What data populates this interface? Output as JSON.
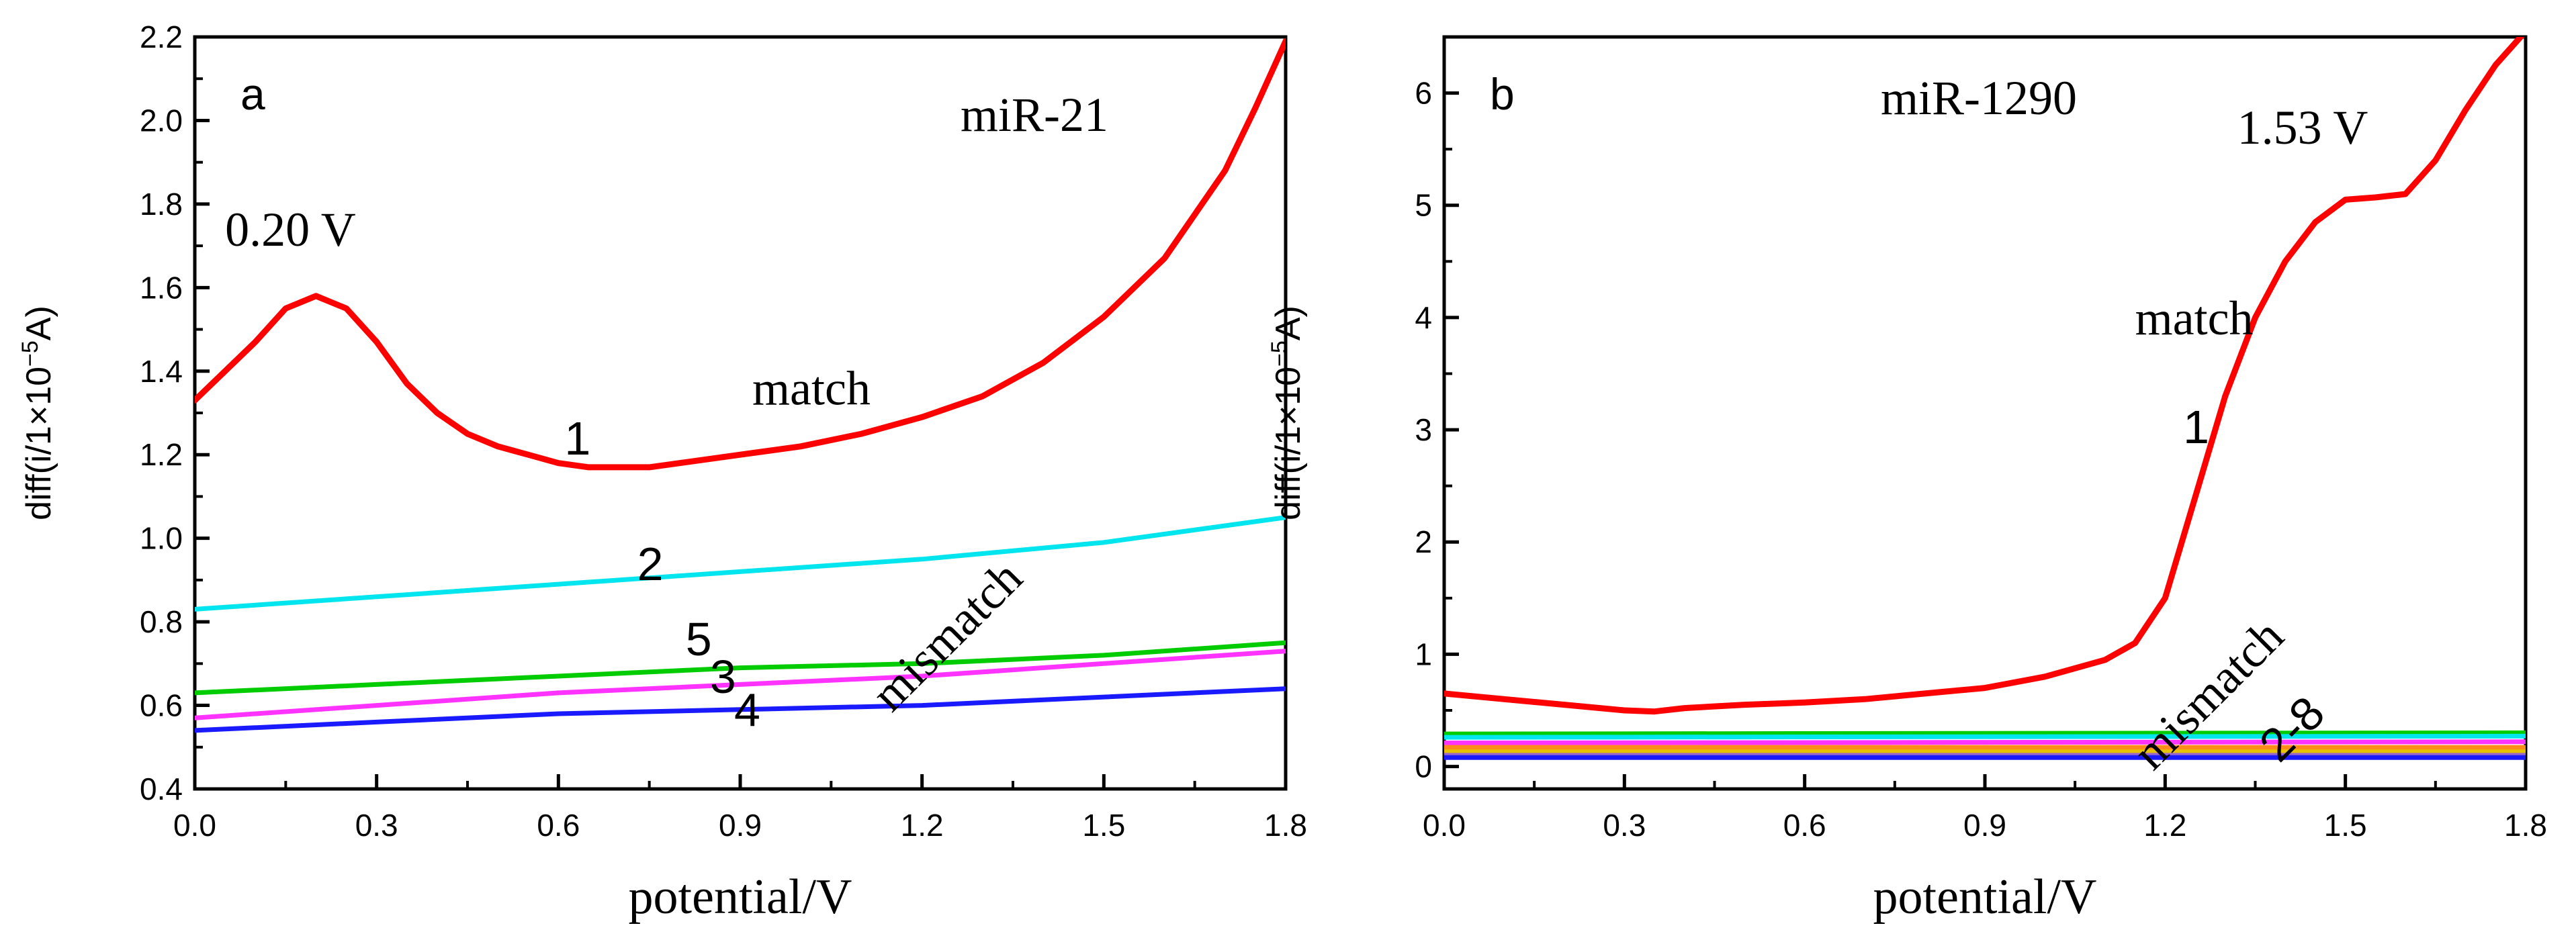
{
  "chart_data": [
    {
      "type": "line",
      "panel_label": "a",
      "title": "miR-21",
      "xlabel": "potential/V",
      "ylabel": "diff(i/1×10",
      "ylabel_exponent": "−5",
      "ylabel_unit": "A)",
      "xlim": [
        0.0,
        1.8
      ],
      "ylim": [
        0.4,
        2.2
      ],
      "xticks": [
        "0.0",
        "0.3",
        "0.6",
        "0.9",
        "1.2",
        "1.5",
        "1.8"
      ],
      "yticks": [
        "0.4",
        "0.6",
        "0.8",
        "1.0",
        "1.2",
        "1.4",
        "1.6",
        "1.8",
        "2.0",
        "2.2"
      ],
      "annotations": [
        {
          "text": "0.20 V",
          "x": 0.05,
          "y": 1.7,
          "style": "serif"
        },
        {
          "text": "match",
          "x": 0.92,
          "y": 1.32,
          "style": "serif"
        },
        {
          "text": "1",
          "x": 0.61,
          "y": 1.2,
          "style": "sans"
        },
        {
          "text": "2",
          "x": 0.73,
          "y": 0.9,
          "style": "sans"
        },
        {
          "text": "5",
          "x": 0.81,
          "y": 0.72,
          "style": "sans"
        },
        {
          "text": "3",
          "x": 0.85,
          "y": 0.63,
          "style": "sans"
        },
        {
          "text": "4",
          "x": 0.89,
          "y": 0.55,
          "style": "sans"
        },
        {
          "text": "mismatch",
          "x": 1.15,
          "y": 0.58,
          "style": "serif",
          "rotate": -45
        }
      ],
      "series": [
        {
          "name": "1",
          "color": "#ff0000",
          "x": [
            0.0,
            0.05,
            0.1,
            0.15,
            0.2,
            0.25,
            0.3,
            0.35,
            0.4,
            0.45,
            0.5,
            0.55,
            0.6,
            0.65,
            0.7,
            0.75,
            0.8,
            0.9,
            1.0,
            1.1,
            1.2,
            1.3,
            1.4,
            1.5,
            1.6,
            1.7,
            1.75,
            1.8
          ],
          "y": [
            1.33,
            1.4,
            1.47,
            1.55,
            1.58,
            1.55,
            1.47,
            1.37,
            1.3,
            1.25,
            1.22,
            1.2,
            1.18,
            1.17,
            1.17,
            1.17,
            1.18,
            1.2,
            1.22,
            1.25,
            1.29,
            1.34,
            1.42,
            1.53,
            1.67,
            1.88,
            2.03,
            2.19
          ]
        },
        {
          "name": "2",
          "color": "#00e5ee",
          "x": [
            0.0,
            0.3,
            0.6,
            0.9,
            1.2,
            1.5,
            1.8
          ],
          "y": [
            0.83,
            0.86,
            0.89,
            0.92,
            0.95,
            0.99,
            1.05
          ]
        },
        {
          "name": "5",
          "color": "#00cc00",
          "x": [
            0.0,
            0.3,
            0.6,
            0.9,
            1.2,
            1.5,
            1.8
          ],
          "y": [
            0.63,
            0.65,
            0.67,
            0.69,
            0.7,
            0.72,
            0.75
          ]
        },
        {
          "name": "3",
          "color": "#ff33ff",
          "x": [
            0.0,
            0.3,
            0.6,
            0.9,
            1.2,
            1.5,
            1.8
          ],
          "y": [
            0.57,
            0.6,
            0.63,
            0.65,
            0.67,
            0.7,
            0.73
          ]
        },
        {
          "name": "4",
          "color": "#1a1aff",
          "x": [
            0.0,
            0.3,
            0.6,
            0.9,
            1.2,
            1.5,
            1.8
          ],
          "y": [
            0.54,
            0.56,
            0.58,
            0.59,
            0.6,
            0.62,
            0.64
          ]
        }
      ]
    },
    {
      "type": "line",
      "panel_label": "b",
      "title": "miR-1290",
      "xlabel": "potential/V",
      "ylabel": "diff(i/1×10",
      "ylabel_exponent": "−5",
      "ylabel_unit": "A)",
      "xlim": [
        0.0,
        1.8
      ],
      "ylim": [
        -0.2,
        6.5
      ],
      "xticks": [
        "0.0",
        "0.3",
        "0.6",
        "0.9",
        "1.2",
        "1.5",
        "1.8"
      ],
      "yticks": [
        "0",
        "1",
        "2",
        "3",
        "4",
        "5",
        "6"
      ],
      "annotations": [
        {
          "text": "1.53 V",
          "x": 1.32,
          "y": 5.55,
          "style": "serif"
        },
        {
          "text": "match",
          "x": 1.15,
          "y": 3.85,
          "style": "serif"
        },
        {
          "text": "1",
          "x": 1.23,
          "y": 2.88,
          "style": "sans"
        },
        {
          "text": "mismatch",
          "x": 1.18,
          "y": -0.05,
          "style": "serif",
          "rotate": -45
        },
        {
          "text": "2-8",
          "x": 1.39,
          "y": 0.02,
          "style": "sans",
          "rotate": -45
        }
      ],
      "series": [
        {
          "name": "1",
          "color": "#ff0000",
          "x": [
            0.0,
            0.1,
            0.2,
            0.3,
            0.35,
            0.4,
            0.5,
            0.6,
            0.7,
            0.8,
            0.9,
            1.0,
            1.1,
            1.15,
            1.2,
            1.25,
            1.3,
            1.35,
            1.4,
            1.45,
            1.5,
            1.55,
            1.6,
            1.65,
            1.7,
            1.75,
            1.8
          ],
          "y": [
            0.65,
            0.6,
            0.55,
            0.5,
            0.49,
            0.52,
            0.55,
            0.57,
            0.6,
            0.65,
            0.7,
            0.8,
            0.95,
            1.1,
            1.5,
            2.4,
            3.3,
            4.0,
            4.5,
            4.85,
            5.05,
            5.07,
            5.1,
            5.4,
            5.85,
            6.25,
            6.55
          ]
        },
        {
          "name": "2",
          "color": "#00cc00",
          "x": [
            0.0,
            1.8
          ],
          "y": [
            0.29,
            0.3
          ]
        },
        {
          "name": "3",
          "color": "#00e5ee",
          "x": [
            0.0,
            1.8
          ],
          "y": [
            0.26,
            0.27
          ]
        },
        {
          "name": "4",
          "color": "#ff33ff",
          "x": [
            0.0,
            1.8
          ],
          "y": [
            0.21,
            0.22
          ]
        },
        {
          "name": "5",
          "color": "#ff8c1a",
          "x": [
            0.0,
            1.8
          ],
          "y": [
            0.17,
            0.17
          ]
        },
        {
          "name": "6",
          "color": "#e6c300",
          "x": [
            0.0,
            1.8
          ],
          "y": [
            0.13,
            0.13
          ]
        },
        {
          "name": "7",
          "color": "#9966cc",
          "x": [
            0.0,
            1.8
          ],
          "y": [
            0.1,
            0.1
          ]
        },
        {
          "name": "8",
          "color": "#1a1aff",
          "x": [
            0.0,
            1.8
          ],
          "y": [
            0.08,
            0.08
          ]
        }
      ]
    }
  ]
}
